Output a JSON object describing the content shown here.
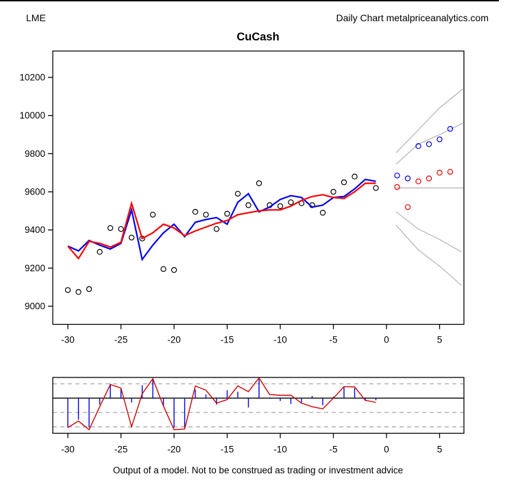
{
  "header": {
    "left": "LME",
    "right": "Daily Chart metalpriceanalytics.com"
  },
  "caption": "Output of a model. Not to be construed as trading or investment advice",
  "colors": {
    "observed_black": "#000000",
    "model_blue": "#0000ee",
    "model_red": "#ff0000",
    "forecast_blue": "#0000ee",
    "forecast_red": "#ee0000",
    "residual_bar_blue": "#0000dd",
    "residual_line_red": "#cc0000",
    "fan_gray": "#b3b3b3",
    "dashed_ref_gray": "#a6a6a6",
    "zero_line_black": "#000000"
  },
  "chart_data": [
    {
      "type": "line",
      "panel": "price",
      "title": "CuCash",
      "xlabel": "",
      "ylabel": "",
      "xlim": [
        -31.42,
        7.29
      ],
      "ylim": [
        8905,
        10338
      ],
      "grid": false,
      "x_ticks": [
        -30,
        -25,
        -20,
        -15,
        -10,
        -5,
        0,
        5
      ],
      "y_ticks": [
        9000,
        9200,
        9400,
        9600,
        9800,
        10000,
        10200
      ],
      "x": [
        -30,
        -29,
        -28,
        -27,
        -26,
        -25,
        -24,
        -23,
        -22,
        -21,
        -20,
        -19,
        -18,
        -17,
        -16,
        -15,
        -14,
        -13,
        -12,
        -11,
        -10,
        -9,
        -8,
        -7,
        -6,
        -5,
        -4,
        -3,
        -2,
        -1
      ],
      "series": [
        {
          "name": "blue_model_fit",
          "type": "line",
          "color_key": "model_blue",
          "values": [
            9315,
            9290,
            9345,
            9320,
            9300,
            9330,
            9505,
            9245,
            9320,
            9385,
            9430,
            9365,
            9440,
            9455,
            9465,
            9430,
            9545,
            9590,
            9495,
            9520,
            9560,
            9580,
            9570,
            9520,
            9530,
            9570,
            9575,
            9615,
            9665,
            9655
          ]
        },
        {
          "name": "red_model_fit",
          "type": "line",
          "color_key": "model_red",
          "values": [
            9315,
            9250,
            9340,
            9330,
            9310,
            9335,
            9540,
            9355,
            9385,
            9430,
            9410,
            9370,
            9395,
            9415,
            9435,
            9450,
            9480,
            9490,
            9500,
            9505,
            9505,
            9525,
            9555,
            9575,
            9585,
            9570,
            9565,
            9600,
            9645,
            9645
          ]
        }
      ],
      "observed_points": [
        [
          -30,
          9085
        ],
        [
          -29,
          9075
        ],
        [
          -28,
          9090
        ],
        [
          -27,
          9285
        ],
        [
          -26,
          9410
        ],
        [
          -25,
          9405
        ],
        [
          -24,
          9360
        ],
        [
          -23,
          9355
        ],
        [
          -22,
          9480
        ],
        [
          -21,
          9195
        ],
        [
          -20,
          9190
        ],
        [
          -18,
          9495
        ],
        [
          -17,
          9480
        ],
        [
          -16,
          9405
        ],
        [
          -15,
          9485
        ],
        [
          -14,
          9590
        ],
        [
          -13,
          9530
        ],
        [
          -12,
          9645
        ],
        [
          -11,
          9530
        ],
        [
          -10,
          9525
        ],
        [
          -9,
          9545
        ],
        [
          -8,
          9540
        ],
        [
          -7,
          9530
        ],
        [
          -6,
          9490
        ],
        [
          -5,
          9600
        ],
        [
          -4,
          9650
        ],
        [
          -3,
          9680
        ],
        [
          -1,
          9620
        ]
      ],
      "forecast": {
        "blue_points": [
          [
            1,
            9685
          ],
          [
            2,
            9670
          ],
          [
            3,
            9840
          ],
          [
            4,
            9850
          ],
          [
            5,
            9875
          ],
          [
            6,
            9930
          ]
        ],
        "red_points": [
          [
            1,
            9625
          ],
          [
            2,
            9520
          ],
          [
            3,
            9655
          ],
          [
            4,
            9670
          ],
          [
            5,
            9700
          ],
          [
            6,
            9705
          ]
        ]
      },
      "fan_lines": [
        {
          "name": "upper_outer",
          "points": [
            [
              0.9,
              9805
            ],
            [
              3,
              9925
            ],
            [
              5,
              10040
            ],
            [
              7.2,
              10140
            ]
          ]
        },
        {
          "name": "upper_inner",
          "points": [
            [
              0.9,
              9745
            ],
            [
              3,
              9850
            ],
            [
              5,
              9900
            ],
            [
              7.2,
              9960
            ]
          ]
        },
        {
          "name": "center",
          "points": [
            [
              0.9,
              9620
            ],
            [
              7.25,
              9620
            ]
          ]
        },
        {
          "name": "lower_inner",
          "points": [
            [
              0.9,
              9495
            ],
            [
              3,
              9405
            ],
            [
              5,
              9350
            ],
            [
              7.05,
              9285
            ]
          ]
        },
        {
          "name": "lower_outer",
          "points": [
            [
              0.9,
              9425
            ],
            [
              3,
              9295
            ],
            [
              5,
              9210
            ],
            [
              7.05,
              9110
            ]
          ]
        }
      ]
    },
    {
      "type": "bar",
      "panel": "residuals",
      "title": "",
      "xlabel": "",
      "ylabel": "",
      "xlim": [
        -31.42,
        7.29
      ],
      "ylim": [
        -2.45,
        1.44
      ],
      "x_ticks": [
        -30,
        -25,
        -20,
        -15,
        -10,
        -5,
        0,
        5
      ],
      "zero_line": 0,
      "dashed_refs": [
        1,
        -1,
        -2
      ],
      "x": [
        -30,
        -29,
        -28,
        -27,
        -26,
        -25,
        -24,
        -23,
        -22,
        -21,
        -20,
        -19,
        -18,
        -17,
        -16,
        -15,
        -14,
        -13,
        -12,
        -11,
        -10,
        -9,
        -8,
        -7,
        -6,
        -5,
        -4,
        -3,
        -2,
        -1
      ],
      "bars": [
        -2.05,
        -1.5,
        -2.05,
        -0.45,
        1.0,
        0.65,
        -0.3,
        0.9,
        1.35,
        -0.55,
        -2.05,
        -2.05,
        0.6,
        0.25,
        -0.45,
        0.55,
        0.45,
        -0.65,
        1.3,
        0.05,
        -0.2,
        -0.4,
        -0.3,
        0.15,
        -0.5,
        0.1,
        0.75,
        0.7,
        -0.2,
        -0.15
      ],
      "line": [
        -2.05,
        -1.6,
        -2.2,
        -0.6,
        0.95,
        0.7,
        -2.0,
        0.3,
        1.35,
        -0.55,
        -2.2,
        -2.15,
        0.85,
        0.55,
        -0.35,
        -0.1,
        0.85,
        0.45,
        1.4,
        0.25,
        0.2,
        0.2,
        -0.35,
        -0.6,
        -0.75,
        0.0,
        0.8,
        0.78,
        -0.15,
        -0.3
      ]
    }
  ]
}
